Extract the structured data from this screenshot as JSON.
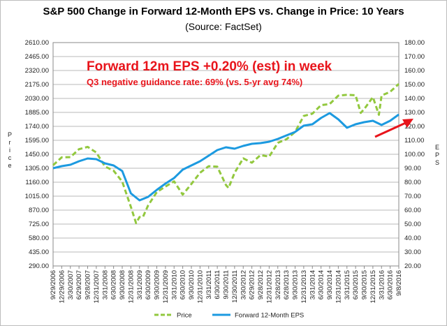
{
  "chart_data": {
    "type": "line",
    "title": "S&P 500 Change in Forward 12-Month EPS vs. Change in Price: 10 Years",
    "subtitle": "(Source: FactSet)",
    "ylabel_left": "P r i c e",
    "ylabel_right": "E P S",
    "y_left": {
      "lim": [
        290,
        2610
      ],
      "ticks": [
        "290.00",
        "435.00",
        "580.00",
        "725.00",
        "870.00",
        "1015.00",
        "1160.00",
        "1305.00",
        "1450.00",
        "1595.00",
        "1740.00",
        "1885.00",
        "2030.00",
        "2175.00",
        "2320.00",
        "2465.00",
        "2610.00"
      ]
    },
    "y_right": {
      "lim": [
        20,
        180
      ],
      "ticks": [
        "20.00",
        "30.00",
        "40.00",
        "50.00",
        "60.00",
        "70.00",
        "80.00",
        "90.00",
        "100.00",
        "110.00",
        "120.00",
        "130.00",
        "140.00",
        "150.00",
        "160.00",
        "170.00",
        "180.00"
      ]
    },
    "x_ticks": [
      "9/29/2006",
      "12/29/2006",
      "3/30/2007",
      "6/29/2007",
      "9/28/2007",
      "12/31/2007",
      "3/31/2008",
      "6/30/2008",
      "9/30/2008",
      "12/31/2008",
      "3/31/2009",
      "6/30/2009",
      "9/30/2009",
      "12/31/2009",
      "3/31/2010",
      "6/30/2010",
      "9/30/2010",
      "12/31/2010",
      "3/31/2011",
      "6/30/2011",
      "9/30/2011",
      "12/30/2011",
      "3/30/2012",
      "6/29/2012",
      "9/28/2012",
      "12/31/2012",
      "3/28/2013",
      "6/28/2013",
      "9/30/2013",
      "12/31/2013",
      "3/31/2014",
      "6/30/2014",
      "9/30/2014",
      "12/31/2014",
      "3/31/2015",
      "6/30/2015",
      "9/30/2015",
      "12/31/2015",
      "3/31/2016",
      "6/30/2016",
      "9/8/2016"
    ],
    "series": [
      {
        "name": "Price",
        "axis": "left",
        "color": "#92c83e",
        "style": "dashed",
        "points": [
          [
            0,
            1336
          ],
          [
            1,
            1418
          ],
          [
            2,
            1420
          ],
          [
            3,
            1503
          ],
          [
            4,
            1527
          ],
          [
            5,
            1468
          ],
          [
            6,
            1323
          ],
          [
            7,
            1280
          ],
          [
            8,
            1166
          ],
          [
            9,
            903
          ],
          [
            10,
            798
          ],
          [
            11,
            919
          ],
          [
            12,
            1057
          ],
          [
            13,
            1115
          ],
          [
            14,
            1169
          ],
          [
            15,
            1031
          ],
          [
            16,
            1141
          ],
          [
            17,
            1258
          ],
          [
            18,
            1326
          ],
          [
            19,
            1321
          ],
          [
            20,
            1131
          ],
          [
            21,
            1258
          ],
          [
            22,
            1408
          ],
          [
            23,
            1362
          ],
          [
            24,
            1441
          ],
          [
            25,
            1426
          ],
          [
            26,
            1569
          ],
          [
            27,
            1606
          ],
          [
            28,
            1682
          ],
          [
            29,
            1848
          ],
          [
            30,
            1872
          ],
          [
            31,
            1960
          ],
          [
            32,
            1972
          ],
          [
            33,
            2059
          ],
          [
            34,
            2068
          ],
          [
            35,
            2063
          ],
          [
            36,
            1920
          ],
          [
            37,
            2044
          ],
          [
            38,
            2060
          ],
          [
            39,
            2099
          ],
          [
            40,
            2181
          ]
        ],
        "extra_points": [
          [
            9.6,
            735
          ],
          [
            10.4,
            800
          ],
          [
            20.3,
            1100
          ],
          [
            35.6,
            1880
          ],
          [
            37.7,
            1860
          ]
        ]
      },
      {
        "name": "Forward 12-Month EPS",
        "axis": "right",
        "color": "#1c9ae0",
        "style": "solid",
        "points": [
          [
            0,
            90
          ],
          [
            1,
            91.5
          ],
          [
            2,
            92.5
          ],
          [
            3,
            95
          ],
          [
            4,
            97
          ],
          [
            5,
            96.5
          ],
          [
            6,
            93.5
          ],
          [
            7,
            92
          ],
          [
            8,
            88
          ],
          [
            9,
            72
          ],
          [
            10,
            67
          ],
          [
            11,
            69.5
          ],
          [
            12,
            74.5
          ],
          [
            13,
            79
          ],
          [
            14,
            83
          ],
          [
            15,
            89
          ],
          [
            16,
            92
          ],
          [
            17,
            95
          ],
          [
            18,
            99
          ],
          [
            19,
            103
          ],
          [
            20,
            105
          ],
          [
            21,
            104
          ],
          [
            22,
            106
          ],
          [
            23,
            107.5
          ],
          [
            24,
            108
          ],
          [
            25,
            109
          ],
          [
            26,
            111
          ],
          [
            27,
            113.5
          ],
          [
            28,
            116
          ],
          [
            29,
            120.5
          ],
          [
            30,
            121.5
          ],
          [
            31,
            126
          ],
          [
            32,
            129.5
          ],
          [
            33,
            125
          ],
          [
            34,
            119
          ],
          [
            35,
            121.5
          ],
          [
            36,
            123
          ],
          [
            37,
            124
          ],
          [
            38,
            121
          ],
          [
            39,
            124
          ],
          [
            40,
            128.5
          ]
        ]
      }
    ],
    "annotations": [
      "Forward 12m EPS +0.20% (est) in week",
      "Q3 negative guidance rate: 69% (vs. 5-yr avg 74%)"
    ],
    "legend": "bottom",
    "grid": "horizontal",
    "arrow_color": "#e8141b"
  }
}
